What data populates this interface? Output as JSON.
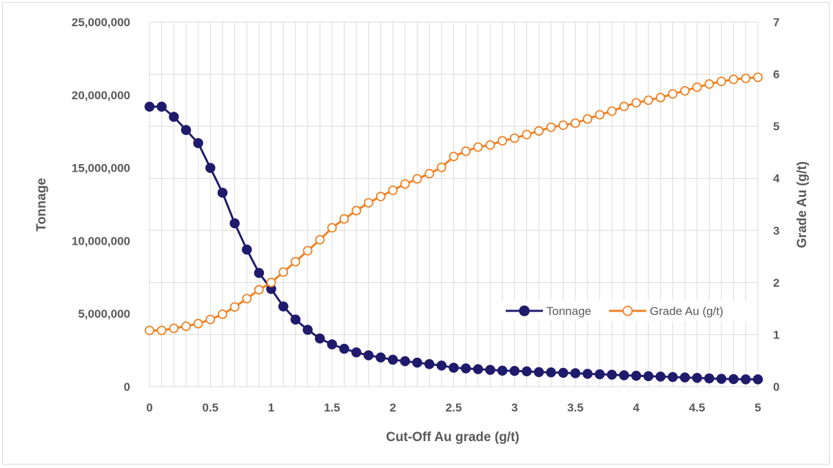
{
  "chart_data": {
    "type": "line",
    "title": "",
    "xlabel": "Cut-Off Au grade (g/t)",
    "ylabel": "Tonnage",
    "y2label": "Grade Au (g/t)",
    "xlim": [
      0,
      5
    ],
    "ylim": [
      0,
      25000000
    ],
    "y2lim": [
      0,
      7
    ],
    "grid": true,
    "legend_position": "center-right",
    "x_ticks": [
      "0",
      "0.5",
      "1",
      "1.5",
      "2",
      "2.5",
      "3",
      "3.5",
      "4",
      "4.5",
      "5"
    ],
    "y_ticks": [
      "0",
      "5,000,000",
      "10,000,000",
      "15,000,000",
      "20,000,000",
      "25,000,000"
    ],
    "y2_ticks": [
      "0",
      "1",
      "2",
      "3",
      "4",
      "5",
      "6",
      "7"
    ],
    "x": [
      0,
      0.1,
      0.2,
      0.3,
      0.4,
      0.5,
      0.6,
      0.7,
      0.8,
      0.9,
      1.0,
      1.1,
      1.2,
      1.3,
      1.4,
      1.5,
      1.6,
      1.7,
      1.8,
      1.9,
      2.0,
      2.1,
      2.2,
      2.3,
      2.4,
      2.5,
      2.6,
      2.7,
      2.8,
      2.9,
      3.0,
      3.1,
      3.2,
      3.3,
      3.4,
      3.5,
      3.6,
      3.7,
      3.8,
      3.9,
      4.0,
      4.1,
      4.2,
      4.3,
      4.4,
      4.5,
      4.6,
      4.7,
      4.8,
      4.9,
      5.0
    ],
    "series": [
      {
        "name": "Tonnage",
        "axis": "left",
        "color": "#1f1a6b",
        "marker": "filled-circle",
        "values": [
          19200000,
          19200000,
          18500000,
          17600000,
          16700000,
          15000000,
          13300000,
          11200000,
          9400000,
          7800000,
          6700000,
          5500000,
          4600000,
          3900000,
          3300000,
          2900000,
          2600000,
          2350000,
          2150000,
          2000000,
          1850000,
          1750000,
          1650000,
          1550000,
          1450000,
          1300000,
          1250000,
          1200000,
          1150000,
          1100000,
          1080000,
          1050000,
          1000000,
          980000,
          950000,
          920000,
          880000,
          850000,
          820000,
          780000,
          750000,
          720000,
          690000,
          660000,
          630000,
          600000,
          570000,
          540000,
          520000,
          500000,
          500000
        ]
      },
      {
        "name": "Grade Au (g/t)",
        "axis": "right",
        "color": "#f07f1f",
        "marker": "open-circle",
        "values": [
          1.08,
          1.08,
          1.12,
          1.16,
          1.21,
          1.29,
          1.39,
          1.53,
          1.69,
          1.86,
          2.0,
          2.2,
          2.4,
          2.61,
          2.82,
          3.05,
          3.22,
          3.38,
          3.53,
          3.65,
          3.77,
          3.89,
          3.99,
          4.09,
          4.21,
          4.42,
          4.52,
          4.6,
          4.64,
          4.72,
          4.77,
          4.84,
          4.91,
          4.98,
          5.02,
          5.06,
          5.14,
          5.22,
          5.29,
          5.38,
          5.45,
          5.5,
          5.55,
          5.62,
          5.68,
          5.75,
          5.81,
          5.86,
          5.9,
          5.92,
          5.94
        ]
      }
    ]
  }
}
